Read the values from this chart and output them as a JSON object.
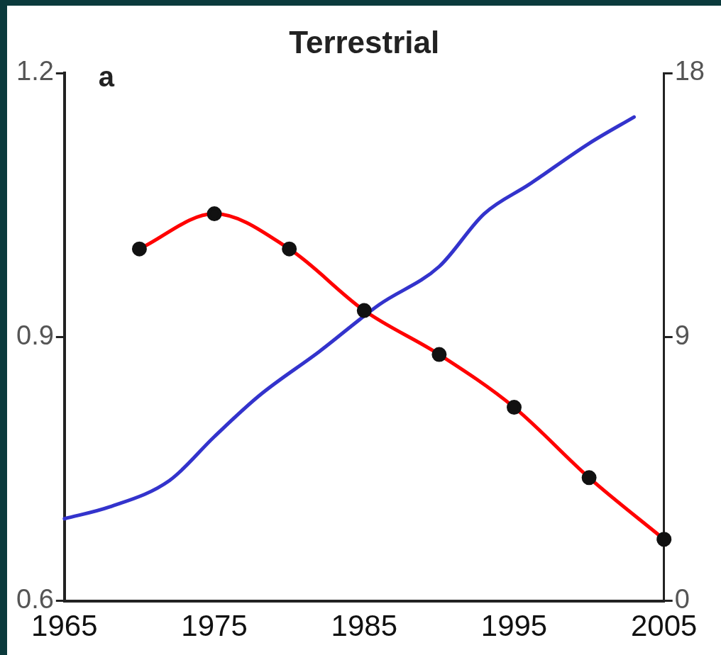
{
  "chart_data": {
    "type": "line",
    "title": "Terrestrial",
    "annotations": [
      "a"
    ],
    "xlim": [
      1965,
      2005
    ],
    "xticks": [
      1965,
      1975,
      1985,
      1995,
      2005
    ],
    "ylim": [
      0.6,
      1.2
    ],
    "yticks": [
      0.6,
      0.9,
      1.2
    ],
    "y2lim": [
      0,
      18
    ],
    "y2ticks": [
      0,
      9,
      18
    ],
    "grid": false,
    "legend": false,
    "line_style": "solid",
    "series": [
      {
        "color": "#ff0000",
        "marker": "circle",
        "x": [
          1970,
          1975,
          1980,
          1985,
          1990,
          1995,
          2000,
          2005
        ],
        "values": [
          1.0,
          1.04,
          1.0,
          0.93,
          0.88,
          0.82,
          0.74,
          0.67
        ]
      },
      {
        "color": "#3333cc",
        "marker": "none",
        "axis": "y2",
        "x": [
          1965,
          1968,
          1972,
          1975,
          1978,
          1982,
          1986,
          1990,
          1993,
          1996,
          2000,
          2003
        ],
        "values": [
          2.8,
          3.2,
          4.1,
          5.6,
          7.0,
          8.5,
          10.1,
          11.4,
          13.2,
          14.2,
          15.6,
          16.5
        ]
      }
    ]
  }
}
